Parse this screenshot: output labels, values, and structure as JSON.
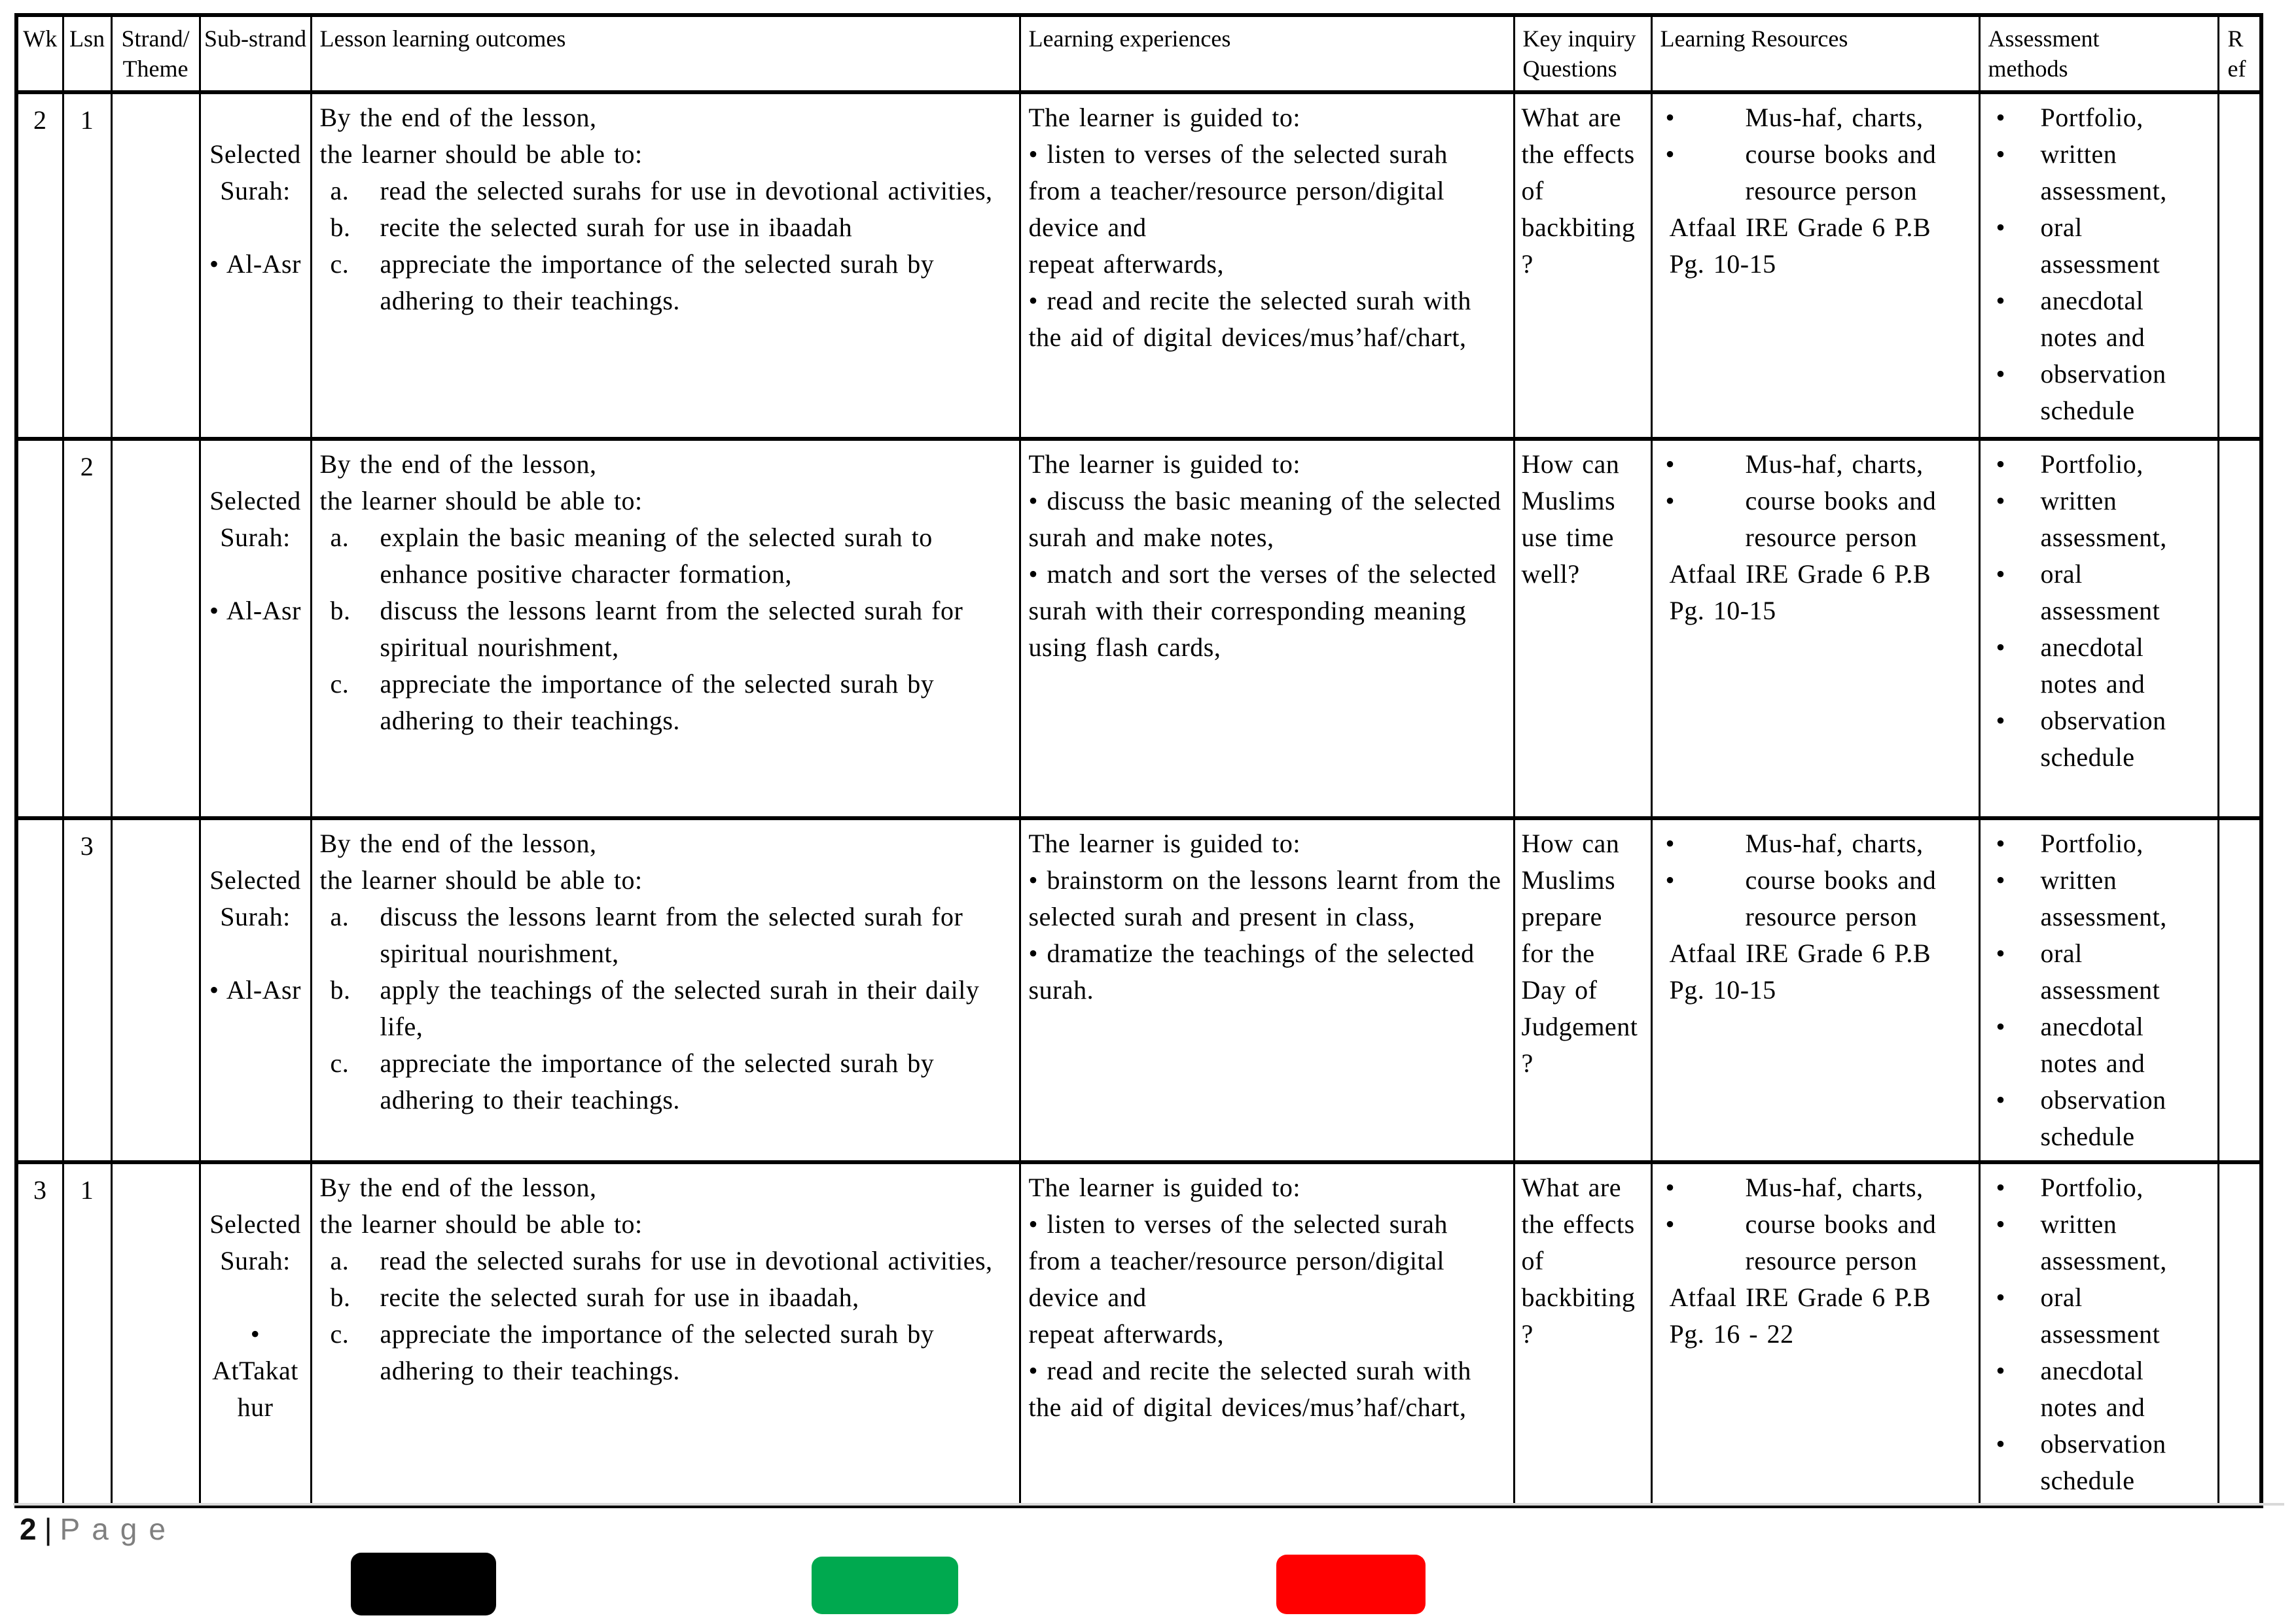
{
  "header": {
    "columns": [
      "Wk",
      "Lsn",
      "Strand/Theme",
      "Sub-strand",
      "Lesson learning outcomes",
      "Learning experiences",
      "Key inquiry Questions",
      "Learning Resources",
      "Assessment methods",
      "Ref"
    ]
  },
  "rows": [
    {
      "wk": "2",
      "lsn": "1",
      "strand": "",
      "sub_strand": {
        "title": "Selected Surah:",
        "item": "• Al-Asr"
      },
      "outcomes": {
        "intro": [
          "By the end of the lesson,",
          "the learner should be able to:"
        ],
        "items": [
          {
            "marker": "a.",
            "text": "read the selected surahs for use in devotional activities,"
          },
          {
            "marker": "b.",
            "text": "recite the selected surah for use in ibaadah"
          },
          {
            "marker": "c.",
            "text": "appreciate the importance of the selected surah by adhering to their teachings."
          }
        ]
      },
      "experiences": {
        "intro": "The learner is guided to:",
        "lines": [
          "• listen to verses of the selected surah from a teacher/resource person/digital device and",
          "repeat afterwards,",
          "• read and recite the selected surah with the aid of digital devices/mus’haf/chart,"
        ]
      },
      "inquiry": "What are the effects of backbiting ?",
      "resources": {
        "bullets": [
          "Mus-haf, charts,",
          "course books and resource person"
        ],
        "book": "Atfaal IRE Grade 6 P.B",
        "pages": "Pg. 10-15"
      },
      "assessment": [
        "Portfolio,",
        "written assessment,",
        "oral assessment",
        "anecdotal notes and",
        "observation schedule"
      ],
      "ref": ""
    },
    {
      "wk": "",
      "lsn": "2",
      "strand": "",
      "sub_strand": {
        "title": "Selected Surah:",
        "item": "• Al-Asr"
      },
      "outcomes": {
        "intro": [
          "By the end of the lesson,",
          "the learner should be able to:"
        ],
        "items": [
          {
            "marker": "a.",
            "text": "explain the basic meaning of the selected surah to enhance positive character formation,"
          },
          {
            "marker": "b.",
            "text": "discuss the lessons learnt from the selected surah for spiritual nourishment,"
          },
          {
            "marker": "c.",
            "text": "appreciate the importance of the selected surah by adhering to their teachings."
          }
        ]
      },
      "experiences": {
        "intro": "The learner is guided to:",
        "lines": [
          "• discuss the basic meaning of the selected surah and make notes,",
          "• match and sort the verses of the selected surah with their corresponding meaning using flash cards,"
        ]
      },
      "inquiry": "How can Muslims use time well?",
      "resources": {
        "bullets": [
          "Mus-haf, charts,",
          "course books and resource person"
        ],
        "book": "Atfaal IRE Grade 6 P.B",
        "pages": "Pg. 10-15"
      },
      "assessment": [
        "Portfolio,",
        "written assessment,",
        "oral assessment",
        "anecdotal notes and",
        "observation schedule"
      ],
      "ref": ""
    },
    {
      "wk": "",
      "lsn": "3",
      "strand": "",
      "sub_strand": {
        "title": "Selected Surah:",
        "item": "• Al-Asr"
      },
      "outcomes": {
        "intro": [
          "By the end of the lesson,",
          "the learner should be able to:"
        ],
        "items": [
          {
            "marker": "a.",
            "text": "discuss the lessons learnt from the selected surah for spiritual nourishment,"
          },
          {
            "marker": "b.",
            "text": "apply the teachings of the selected surah in their daily life,"
          },
          {
            "marker": "c.",
            "text": "appreciate the importance of the selected surah by adhering to their teachings."
          }
        ]
      },
      "experiences": {
        "intro": "The learner is guided to:",
        "lines": [
          "• brainstorm on the lessons learnt from the selected surah and present in class,",
          "• dramatize the teachings of the selected surah."
        ]
      },
      "inquiry": "How can Muslims prepare for the Day of Judgement ?",
      "resources": {
        "bullets": [
          "Mus-haf, charts,",
          "course books and resource person"
        ],
        "book": "Atfaal IRE Grade 6 P.B",
        "pages": "Pg. 10-15"
      },
      "assessment": [
        "Portfolio,",
        "written assessment,",
        "oral assessment",
        "anecdotal notes and",
        "observation schedule"
      ],
      "ref": ""
    },
    {
      "wk": "3",
      "lsn": "1",
      "strand": "",
      "sub_strand": {
        "title": "Selected Surah:",
        "item": "•\nAtTakathur"
      },
      "outcomes": {
        "intro": [
          "By the end of the lesson,",
          "the learner should be able to:"
        ],
        "items": [
          {
            "marker": "a.",
            "text": "read the selected surahs for use in devotional activities,"
          },
          {
            "marker": "b.",
            "text": "recite the selected surah for use in ibaadah,"
          },
          {
            "marker": "c.",
            "text": "appreciate the importance of the selected surah by adhering to their teachings."
          }
        ]
      },
      "experiences": {
        "intro": "The learner is guided to:",
        "lines": [
          "• listen to verses of the selected surah from a teacher/resource person/digital device and",
          "repeat afterwards,",
          "• read and recite the selected surah with the aid of digital devices/mus’haf/chart,"
        ]
      },
      "inquiry": "What are the effects of backbiting ?",
      "resources": {
        "bullets": [
          "Mus-haf, charts,",
          "course books and resource person"
        ],
        "book": "Atfaal IRE Grade 6 P.B",
        "pages": "Pg. 16 - 22"
      },
      "assessment": [
        "Portfolio,",
        "written assessment,",
        "oral assessment",
        "anecdotal notes and",
        "observation schedule"
      ],
      "ref": ""
    }
  ],
  "footer": {
    "page_number": "2",
    "separator": "|",
    "page_label": "Page"
  },
  "colors": {
    "black_bar": "#000000",
    "green_bar": "#00A94F",
    "red_bar": "#FF0000"
  }
}
